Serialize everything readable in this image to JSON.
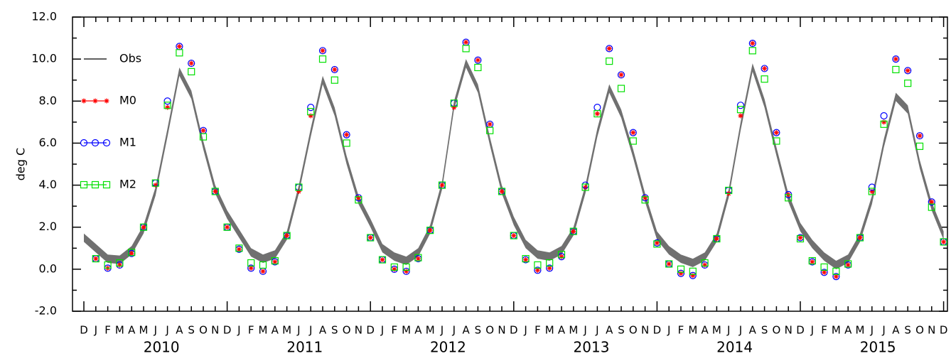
{
  "chart_data": {
    "type": "line",
    "y_label": "deg C",
    "categories": [
      "D",
      "J",
      "F",
      "M",
      "A",
      "M",
      "J",
      "J",
      "A",
      "S",
      "O",
      "N",
      "D",
      "J",
      "F",
      "M",
      "A",
      "M",
      "J",
      "J",
      "A",
      "S",
      "O",
      "N",
      "D",
      "J",
      "F",
      "M",
      "A",
      "M",
      "J",
      "J",
      "A",
      "S",
      "O",
      "N",
      "D",
      "J",
      "F",
      "M",
      "A",
      "M",
      "J",
      "J",
      "A",
      "S",
      "O",
      "N",
      "D",
      "J",
      "F",
      "M",
      "A",
      "M",
      "J",
      "J",
      "A",
      "S",
      "O",
      "N",
      "D",
      "J",
      "F",
      "M",
      "A",
      "M",
      "J",
      "J",
      "A",
      "S",
      "O",
      "N",
      "D"
    ],
    "year_labels": [
      "2010",
      "2011",
      "2012",
      "2013",
      "2014",
      "2015"
    ],
    "ylim": [
      -2,
      12
    ],
    "yticks": [
      {
        "value": -2,
        "label": "-2.0"
      },
      {
        "value": 0,
        "label": "0.0"
      },
      {
        "value": 2,
        "label": "2.0"
      },
      {
        "value": 4,
        "label": "4.0"
      },
      {
        "value": 6,
        "label": "6.0"
      },
      {
        "value": 8,
        "label": "8.0"
      },
      {
        "value": 10,
        "label": "10.0"
      },
      {
        "value": 12,
        "label": "12.0"
      }
    ],
    "yticks_minor": [
      -1,
      1,
      3,
      5,
      7,
      9,
      11
    ],
    "legend": "upper left",
    "series": [
      {
        "name": "Obs",
        "color": "#000000",
        "band_color": "#707070",
        "marker": "none",
        "values": [
          1.5,
          1.0,
          0.5,
          0.45,
          0.9,
          1.9,
          3.7,
          6.5,
          9.4,
          8.3,
          5.9,
          3.8,
          2.6,
          1.7,
          0.8,
          0.5,
          0.7,
          1.6,
          3.8,
          6.5,
          9.0,
          7.5,
          5.2,
          3.3,
          2.2,
          1.0,
          0.6,
          0.4,
          0.8,
          1.9,
          4.0,
          7.8,
          9.8,
          8.6,
          6.1,
          3.8,
          2.3,
          1.2,
          0.7,
          0.6,
          0.9,
          1.8,
          3.8,
          6.5,
          8.6,
          7.4,
          5.5,
          3.4,
          1.6,
          0.9,
          0.5,
          0.3,
          0.6,
          1.5,
          3.6,
          6.8,
          9.6,
          7.9,
          5.6,
          3.4,
          2.0,
          1.2,
          0.6,
          0.2,
          0.5,
          1.5,
          3.3,
          6.0,
          8.2,
          7.6,
          5.0,
          3.0,
          1.6
        ],
        "lower": [
          1.3,
          0.8,
          0.3,
          0.25,
          0.7,
          1.7,
          3.5,
          6.3,
          9.2,
          8.1,
          5.7,
          3.6,
          2.4,
          1.5,
          0.6,
          0.3,
          0.5,
          1.4,
          3.6,
          6.3,
          8.8,
          7.3,
          5.0,
          3.1,
          2.0,
          0.8,
          0.4,
          0.2,
          0.6,
          1.7,
          3.8,
          7.6,
          9.6,
          8.4,
          5.9,
          3.6,
          2.1,
          1.0,
          0.5,
          0.4,
          0.7,
          1.6,
          3.6,
          6.3,
          8.4,
          7.2,
          5.3,
          3.2,
          1.4,
          0.7,
          0.3,
          0.1,
          0.4,
          1.3,
          3.4,
          6.6,
          9.4,
          7.7,
          5.4,
          3.2,
          1.8,
          1.0,
          0.4,
          0.0,
          0.3,
          1.3,
          3.1,
          5.8,
          8.0,
          7.4,
          4.8,
          2.8,
          1.4
        ],
        "upper": [
          1.7,
          1.2,
          0.7,
          0.65,
          1.1,
          2.1,
          3.9,
          6.7,
          9.6,
          8.5,
          6.1,
          4.0,
          2.8,
          1.9,
          1.0,
          0.7,
          0.9,
          1.8,
          4.0,
          6.7,
          9.2,
          7.7,
          5.4,
          3.5,
          2.4,
          1.2,
          0.8,
          0.6,
          1.0,
          2.1,
          4.2,
          8.0,
          10.0,
          8.8,
          6.3,
          4.0,
          2.5,
          1.4,
          0.9,
          0.8,
          1.1,
          2.0,
          4.0,
          6.7,
          8.8,
          7.6,
          5.7,
          3.6,
          1.8,
          1.1,
          0.7,
          0.5,
          0.8,
          1.7,
          3.8,
          7.0,
          9.8,
          8.1,
          5.8,
          3.6,
          2.2,
          1.4,
          0.8,
          0.4,
          0.7,
          1.7,
          3.5,
          6.2,
          8.4,
          7.8,
          5.2,
          3.2,
          1.8
        ]
      },
      {
        "name": "M0",
        "color": "#ff0000",
        "marker": "star",
        "values": [
          null,
          0.5,
          0.05,
          0.2,
          0.75,
          2.0,
          4.0,
          7.7,
          10.6,
          9.8,
          6.6,
          3.7,
          2.0,
          0.95,
          0.05,
          -0.1,
          0.35,
          1.6,
          3.7,
          7.3,
          10.4,
          9.5,
          6.4,
          3.4,
          1.5,
          0.45,
          0.0,
          -0.1,
          0.5,
          1.85,
          4.0,
          7.7,
          10.8,
          9.95,
          6.9,
          3.7,
          1.6,
          0.45,
          -0.05,
          0.05,
          0.6,
          1.8,
          3.9,
          7.4,
          10.5,
          9.25,
          6.5,
          3.4,
          1.25,
          0.25,
          -0.2,
          -0.3,
          0.2,
          1.45,
          3.6,
          7.3,
          10.75,
          9.55,
          6.5,
          3.55,
          1.5,
          0.35,
          -0.15,
          -0.35,
          0.2,
          1.5,
          3.7,
          7.0,
          10.0,
          9.45,
          6.35,
          3.2,
          1.3
        ]
      },
      {
        "name": "M1",
        "color": "#0000ff",
        "marker": "circle",
        "values": [
          null,
          0.5,
          0.05,
          0.2,
          0.75,
          2.0,
          4.1,
          8.0,
          10.6,
          9.8,
          6.6,
          3.7,
          2.0,
          0.95,
          0.05,
          -0.1,
          0.35,
          1.6,
          3.9,
          7.7,
          10.4,
          9.5,
          6.4,
          3.4,
          1.5,
          0.45,
          0.0,
          -0.1,
          0.5,
          1.85,
          4.0,
          7.9,
          10.8,
          9.95,
          6.9,
          3.7,
          1.6,
          0.45,
          -0.05,
          0.05,
          0.6,
          1.8,
          4.0,
          7.7,
          10.5,
          9.25,
          6.5,
          3.4,
          1.25,
          0.25,
          -0.2,
          -0.3,
          0.2,
          1.45,
          3.75,
          7.8,
          10.75,
          9.55,
          6.5,
          3.55,
          1.5,
          0.35,
          -0.15,
          -0.35,
          0.2,
          1.5,
          3.9,
          7.3,
          10.0,
          9.45,
          6.35,
          3.2,
          1.3
        ]
      },
      {
        "name": "M2",
        "color": "#00e000",
        "marker": "square",
        "values": [
          null,
          0.5,
          0.2,
          0.3,
          0.8,
          2.0,
          4.1,
          7.8,
          10.3,
          9.4,
          6.3,
          3.7,
          2.0,
          1.0,
          0.3,
          0.2,
          0.4,
          1.6,
          3.9,
          7.5,
          10.0,
          9.0,
          6.0,
          3.3,
          1.5,
          0.45,
          0.1,
          0.1,
          0.55,
          1.85,
          4.0,
          7.9,
          10.5,
          9.6,
          6.6,
          3.7,
          1.6,
          0.5,
          0.2,
          0.3,
          0.7,
          1.8,
          3.9,
          7.4,
          9.9,
          8.6,
          6.1,
          3.3,
          1.2,
          0.25,
          0.0,
          -0.1,
          0.3,
          1.45,
          3.75,
          7.6,
          10.4,
          9.05,
          6.1,
          3.4,
          1.45,
          0.4,
          0.1,
          -0.1,
          0.25,
          1.5,
          3.7,
          6.9,
          9.5,
          8.85,
          5.85,
          2.95,
          1.3
        ]
      }
    ]
  }
}
